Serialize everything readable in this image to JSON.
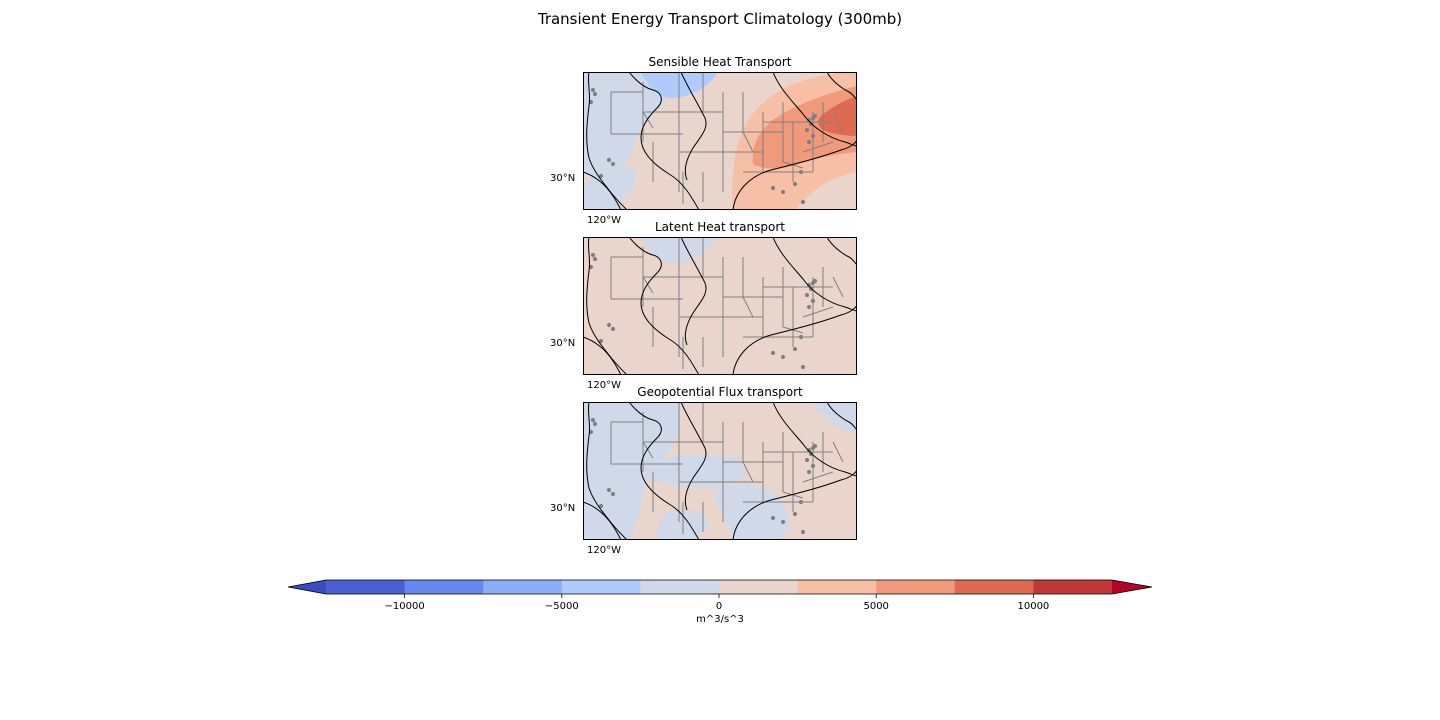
{
  "figure": {
    "title": "Transient Energy Transport Climatology (300mb)"
  },
  "panels": [
    {
      "title": "Sensible Heat Transport",
      "lat_label": "30°N",
      "lon_label": "120°W"
    },
    {
      "title": "Latent Heat transport",
      "lat_label": "30°N",
      "lon_label": "120°W"
    },
    {
      "title": "Geopotential Flux transport",
      "lat_label": "30°N",
      "lon_label": "120°W"
    }
  ],
  "colorbar": {
    "label": "m^3/s^3",
    "ticks": [
      -10000,
      -5000,
      0,
      5000,
      10000
    ],
    "tick_labels": [
      "−10000",
      "−5000",
      "0",
      "5000",
      "10000"
    ],
    "levels": [
      -12500,
      -10000,
      -7500,
      -5000,
      -2500,
      0,
      2500,
      5000,
      7500,
      10000,
      12500
    ],
    "colors": [
      "#4a5fd1",
      "#6788ee",
      "#8caef5",
      "#b0cbfb",
      "#cfd9ea",
      "#ead5cd",
      "#f6bfa6",
      "#f19a7b",
      "#de6a52",
      "#c2373a"
    ],
    "extend_min_color": "#3b4cc0",
    "extend_max_color": "#b40426"
  },
  "chart_data": [
    {
      "type": "heatmap",
      "title": "Sensible Heat Transport",
      "colormap": "coolwarm",
      "regions": [
        {
          "name": "background",
          "value": 1500
        },
        {
          "name": "northwest-cool",
          "value": -1500
        },
        {
          "name": "montana-cool",
          "value": -3500
        },
        {
          "name": "texas-cool",
          "value": -1200
        },
        {
          "name": "east-warm-outer",
          "value": 3500
        },
        {
          "name": "east-warm-mid",
          "value": 6000
        },
        {
          "name": "east-warm-inner",
          "value": 8500
        },
        {
          "name": "southwest-cool",
          "value": -1000
        }
      ]
    },
    {
      "type": "heatmap",
      "title": "Latent Heat transport",
      "colormap": "coolwarm",
      "regions": [
        {
          "name": "background",
          "value": 800
        },
        {
          "name": "montana-cool",
          "value": -800
        }
      ]
    },
    {
      "type": "heatmap",
      "title": "Geopotential Flux transport",
      "colormap": "coolwarm",
      "regions": [
        {
          "name": "background",
          "value": 1000
        },
        {
          "name": "west-cool",
          "value": -1000
        },
        {
          "name": "plains-cool",
          "value": -1000
        },
        {
          "name": "southeast-cool",
          "value": -1000
        },
        {
          "name": "northeast-corner-cool",
          "value": -800
        },
        {
          "name": "gulf-cool",
          "value": -800
        }
      ]
    }
  ]
}
